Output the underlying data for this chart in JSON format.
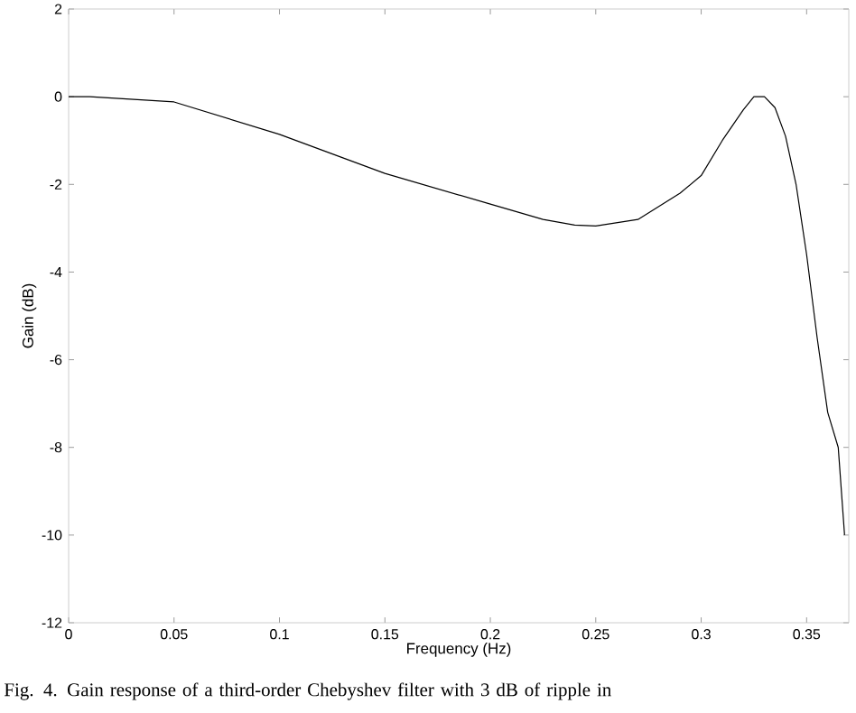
{
  "chart_data": {
    "type": "line",
    "xlabel": "Frequency (Hz)",
    "ylabel": "Gain (dB)",
    "annotations": [
      "Fig. 4.    Gain response of a third-order Chebyshev filter with 3 dB of ripple in"
    ],
    "x": [
      0,
      0.01,
      0.05,
      0.1,
      0.15,
      0.2,
      0.225,
      0.24,
      0.25,
      0.27,
      0.29,
      0.3,
      0.31,
      0.32,
      0.325,
      0.33,
      0.335,
      0.34,
      0.345,
      0.35,
      0.355,
      0.36,
      0.365,
      0.368
    ],
    "series": [
      {
        "color": "#000000",
        "values": [
          0,
          0,
          -0.12,
          -0.86,
          -1.75,
          -2.45,
          -2.8,
          -2.93,
          -2.95,
          -2.8,
          -2.2,
          -1.8,
          -1.0,
          -0.3,
          0,
          0,
          -0.25,
          -0.9,
          -2,
          -3.6,
          -5.5,
          -7.2,
          -8,
          -10
        ]
      }
    ],
    "xlim": [
      0,
      0.37
    ],
    "ylim": [
      -12,
      2
    ],
    "xticks": [
      0,
      0.05,
      0.1,
      0.15,
      0.2,
      0.25,
      0.3,
      0.35
    ],
    "yticks": [
      -12,
      -10,
      -8,
      -6,
      -4,
      -2,
      0,
      2
    ]
  }
}
